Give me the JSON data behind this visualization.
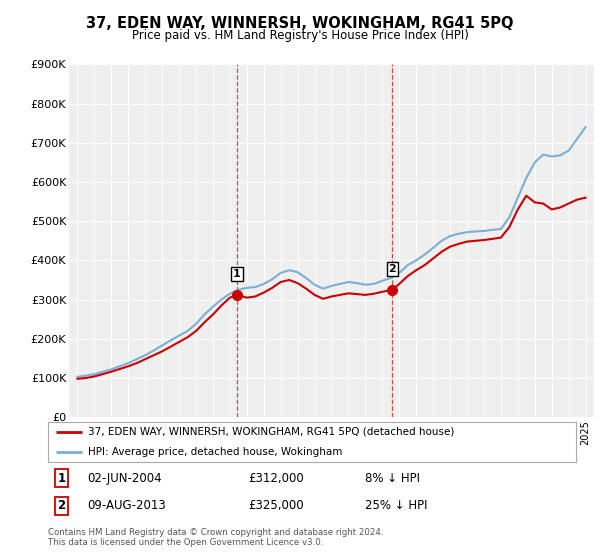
{
  "title": "37, EDEN WAY, WINNERSH, WOKINGHAM, RG41 5PQ",
  "subtitle": "Price paid vs. HM Land Registry's House Price Index (HPI)",
  "legend_label_red": "37, EDEN WAY, WINNERSH, WOKINGHAM, RG41 5PQ (detached house)",
  "legend_label_blue": "HPI: Average price, detached house, Wokingham",
  "footer": "Contains HM Land Registry data © Crown copyright and database right 2024.\nThis data is licensed under the Open Government Licence v3.0.",
  "marker1_date": "02-JUN-2004",
  "marker1_price": "£312,000",
  "marker1_hpi": "8% ↓ HPI",
  "marker1_x": 2004.42,
  "marker1_y": 312000,
  "marker2_date": "09-AUG-2013",
  "marker2_price": "£325,000",
  "marker2_hpi": "25% ↓ HPI",
  "marker2_x": 2013.6,
  "marker2_y": 325000,
  "ylim": [
    0,
    900000
  ],
  "xlim_start": 1994.5,
  "xlim_end": 2025.5,
  "yticks": [
    0,
    100000,
    200000,
    300000,
    400000,
    500000,
    600000,
    700000,
    800000,
    900000
  ],
  "ytick_labels": [
    "£0",
    "£100K",
    "£200K",
    "£300K",
    "£400K",
    "£500K",
    "£600K",
    "£700K",
    "£800K",
    "£900K"
  ],
  "background_color": "#ffffff",
  "plot_bg_color": "#efefef",
  "grid_color": "#ffffff",
  "red_color": "#cc0000",
  "blue_color": "#7bafd4",
  "dashed_line_color": "#cc0000",
  "hpi_x": [
    1995.0,
    1995.5,
    1996.0,
    1996.5,
    1997.0,
    1997.5,
    1998.0,
    1998.5,
    1999.0,
    1999.5,
    2000.0,
    2000.5,
    2001.0,
    2001.5,
    2002.0,
    2002.5,
    2003.0,
    2003.5,
    2004.0,
    2004.5,
    2005.0,
    2005.5,
    2006.0,
    2006.5,
    2007.0,
    2007.5,
    2008.0,
    2008.5,
    2009.0,
    2009.5,
    2010.0,
    2010.5,
    2011.0,
    2011.5,
    2012.0,
    2012.5,
    2013.0,
    2013.5,
    2014.0,
    2014.5,
    2015.0,
    2015.5,
    2016.0,
    2016.5,
    2017.0,
    2017.5,
    2018.0,
    2018.5,
    2019.0,
    2019.5,
    2020.0,
    2020.5,
    2021.0,
    2021.5,
    2022.0,
    2022.5,
    2023.0,
    2023.5,
    2024.0,
    2024.5,
    2025.0
  ],
  "hpi_y": [
    103000,
    106000,
    110000,
    116000,
    122000,
    130000,
    138000,
    148000,
    158000,
    170000,
    183000,
    196000,
    208000,
    220000,
    238000,
    262000,
    282000,
    300000,
    315000,
    325000,
    330000,
    332000,
    340000,
    352000,
    368000,
    375000,
    370000,
    355000,
    338000,
    328000,
    335000,
    340000,
    345000,
    342000,
    338000,
    340000,
    348000,
    355000,
    368000,
    388000,
    400000,
    415000,
    432000,
    450000,
    462000,
    468000,
    472000,
    474000,
    475000,
    478000,
    480000,
    510000,
    560000,
    610000,
    650000,
    670000,
    665000,
    668000,
    680000,
    710000,
    740000
  ],
  "red_x": [
    1995.0,
    1995.5,
    1996.0,
    1996.5,
    1997.0,
    1997.5,
    1998.0,
    1998.5,
    1999.0,
    1999.5,
    2000.0,
    2000.5,
    2001.0,
    2001.5,
    2002.0,
    2002.5,
    2003.0,
    2003.5,
    2004.0,
    2004.42,
    2005.0,
    2005.5,
    2006.0,
    2006.5,
    2007.0,
    2007.5,
    2008.0,
    2008.5,
    2009.0,
    2009.5,
    2010.0,
    2010.5,
    2011.0,
    2011.5,
    2012.0,
    2012.5,
    2013.0,
    2013.6,
    2014.0,
    2014.5,
    2015.0,
    2015.5,
    2016.0,
    2016.5,
    2017.0,
    2017.5,
    2018.0,
    2018.5,
    2019.0,
    2019.5,
    2020.0,
    2020.5,
    2021.0,
    2021.5,
    2022.0,
    2022.5,
    2023.0,
    2023.5,
    2024.0,
    2024.5,
    2025.0
  ],
  "red_y": [
    98000,
    100000,
    104000,
    110000,
    116000,
    123000,
    130000,
    138000,
    148000,
    158000,
    168000,
    180000,
    192000,
    204000,
    220000,
    242000,
    262000,
    285000,
    305000,
    312000,
    305000,
    308000,
    318000,
    330000,
    345000,
    350000,
    342000,
    328000,
    312000,
    302000,
    308000,
    312000,
    316000,
    314000,
    312000,
    315000,
    320000,
    325000,
    340000,
    360000,
    375000,
    388000,
    405000,
    422000,
    435000,
    442000,
    448000,
    450000,
    452000,
    455000,
    458000,
    485000,
    530000,
    565000,
    548000,
    545000,
    530000,
    535000,
    545000,
    555000,
    560000
  ]
}
